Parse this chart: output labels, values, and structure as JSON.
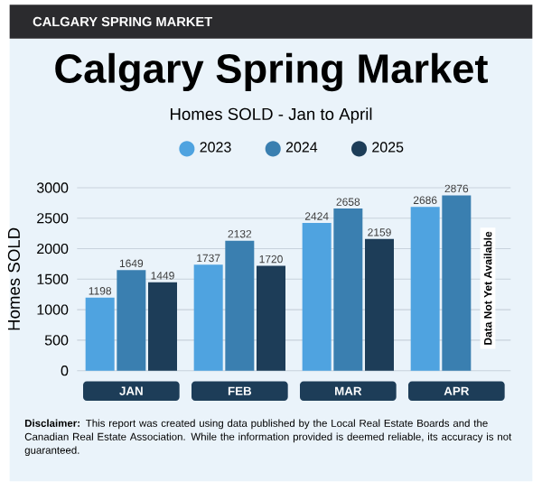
{
  "chart_data": {
    "type": "bar",
    "title": "Calgary Spring Market",
    "subtitle": "Homes SOLD - Jan to April",
    "ylabel": "Homes SOLD",
    "categories": [
      "JAN",
      "FEB",
      "MAR",
      "APR"
    ],
    "series": [
      {
        "name": "2023",
        "color": "#4fa3e0",
        "values": [
          1198,
          1737,
          2424,
          2686
        ]
      },
      {
        "name": "2024",
        "color": "#3a7fb0",
        "values": [
          1649,
          2132,
          2658,
          2876
        ]
      },
      {
        "name": "2025",
        "color": "#1d3d58",
        "values": [
          1449,
          1720,
          2159,
          null
        ]
      }
    ],
    "ylim": [
      0,
      3000
    ],
    "yticks": [
      0,
      500,
      1000,
      1500,
      2000,
      2500,
      3000
    ],
    "grid": "y",
    "legend": "top",
    "data_labels": true,
    "annotations": [
      "CALGARY SPRING MARKET",
      "Data Not Yet Available",
      "**Disclaimer:** This report was created using data published by the Local Real Estate Boards and the Canadian Real Estate Association. While the information provided is deemed reliable, its accuracy is not guaranteed."
    ]
  }
}
